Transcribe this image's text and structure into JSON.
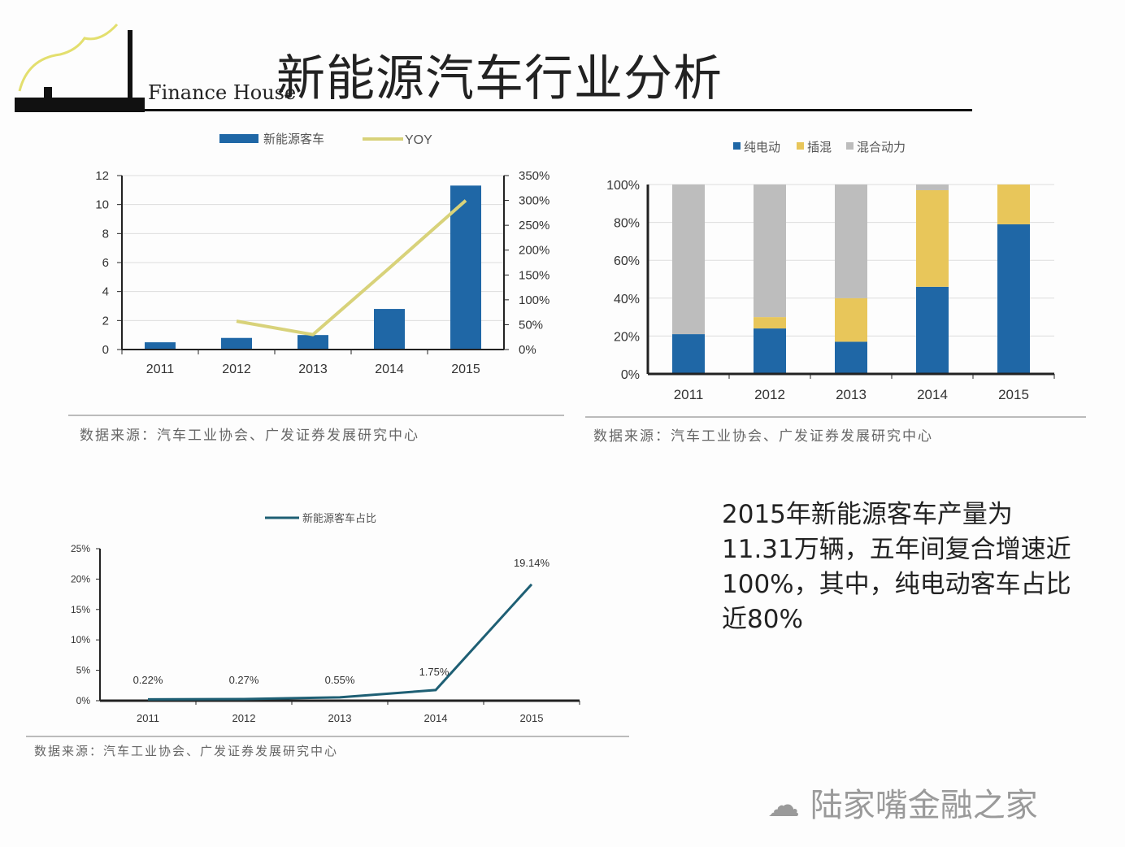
{
  "header": {
    "title": "新能源汽车行业分析",
    "logo_text": "Finance House"
  },
  "source_text": "数据来源：汽车工业协会、广发证券发展研究中心",
  "note": "2015年新能源客车产量为11.31万辆，五年间复合增速近100%，其中，纯电动客车占比近80%",
  "watermark": "陆家嘴金融之家",
  "colors": {
    "blue": "#1f67a6",
    "yellow": "#e8c65a",
    "grey": "#bdbdbd",
    "teal": "#1e5f74",
    "yoy": "#d8d27a"
  },
  "chart_data": [
    {
      "type": "bar",
      "categories": [
        "2011",
        "2012",
        "2013",
        "2014",
        "2015"
      ],
      "series": [
        {
          "name": "新能源客车",
          "kind": "bar",
          "axis": "left",
          "values": [
            0.5,
            0.8,
            1.0,
            2.8,
            11.31
          ]
        },
        {
          "name": "YOY",
          "kind": "line",
          "axis": "right",
          "values": [
            null,
            57,
            30,
            164,
            300
          ]
        }
      ],
      "ylim": [
        0,
        12
      ],
      "yticks": [
        "0",
        "2",
        "4",
        "6",
        "8",
        "10",
        "12"
      ],
      "y2lim": [
        0,
        350
      ],
      "y2ticks": [
        "0%",
        "50%",
        "100%",
        "150%",
        "200%",
        "250%",
        "300%",
        "350%"
      ],
      "legend": "top",
      "grid": true
    },
    {
      "type": "bar",
      "stacked": true,
      "categories": [
        "2011",
        "2012",
        "2013",
        "2014",
        "2015"
      ],
      "series": [
        {
          "name": "纯电动",
          "values": [
            21,
            24,
            17,
            46,
            79
          ]
        },
        {
          "name": "插混",
          "values": [
            0,
            6,
            23,
            51,
            21
          ]
        },
        {
          "name": "混合动力",
          "values": [
            79,
            70,
            60,
            3,
            0
          ]
        }
      ],
      "ylim": [
        0,
        100
      ],
      "yticks": [
        "0%",
        "20%",
        "40%",
        "60%",
        "80%",
        "100%"
      ],
      "legend": "top",
      "grid": true
    },
    {
      "type": "line",
      "categories": [
        "2011",
        "2012",
        "2013",
        "2014",
        "2015"
      ],
      "series": [
        {
          "name": "新能源客车占比",
          "values": [
            0.22,
            0.27,
            0.55,
            1.75,
            19.14
          ]
        }
      ],
      "data_labels": [
        "0.22%",
        "0.27%",
        "0.55%",
        "1.75%",
        "19.14%"
      ],
      "ylim": [
        0,
        25
      ],
      "yticks": [
        "0%",
        "5%",
        "10%",
        "15%",
        "20%",
        "25%"
      ],
      "legend": "top",
      "grid": false
    }
  ]
}
